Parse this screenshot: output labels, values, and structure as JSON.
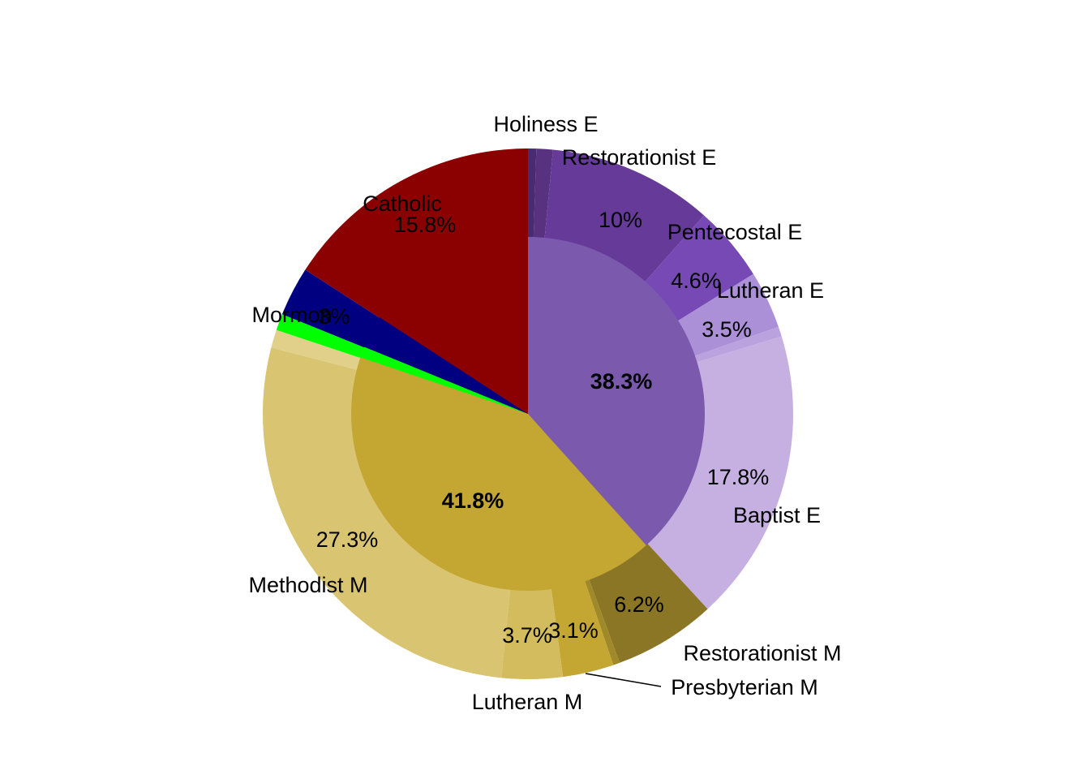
{
  "chart_data": {
    "type": "pie",
    "variant": "sunburst-two-ring",
    "title": "",
    "start": "12 o'clock",
    "direction": "clockwise",
    "inner_ring": [
      {
        "name": "",
        "value": 38.3,
        "label": "38.3%",
        "color": "#7b5aae"
      },
      {
        "name": "",
        "value": 41.8,
        "label": "41.8%",
        "color": "#c4a633"
      },
      {
        "name": "",
        "value": 1.0,
        "label": "",
        "color": "#00ff00"
      },
      {
        "name": "",
        "value": 3.0,
        "label": "",
        "color": "#000080"
      },
      {
        "name": "",
        "value": 15.8,
        "label": "",
        "color": "#8b0000"
      }
    ],
    "outer_ring": [
      {
        "name": "Holiness E",
        "value": 0.5,
        "label": "",
        "color": "#4a2a70"
      },
      {
        "name": "Restorationist E",
        "value": 1.0,
        "label": "",
        "color": "#58327f"
      },
      {
        "name": "",
        "value": 10.0,
        "label": "10%",
        "color": "#653a98"
      },
      {
        "name": "Pentecostal E",
        "value": 4.6,
        "label": "4.6%",
        "color": "#7649b5"
      },
      {
        "name": "Lutheran E",
        "value": 3.5,
        "label": "3.5%",
        "color": "#ab8fd7"
      },
      {
        "name": "",
        "value": 0.6,
        "label": "",
        "color": "#b9a2dd"
      },
      {
        "name": "Baptist E",
        "value": 17.8,
        "label": "17.8%",
        "color": "#c5b0e1"
      },
      {
        "name": "Restorationist M",
        "value": 6.2,
        "label": "6.2%",
        "color": "#8b7625"
      },
      {
        "name": "",
        "value": 0.4,
        "label": "",
        "color": "#a08929"
      },
      {
        "name": "Presbyterian M",
        "value": 3.1,
        "label": "3.1%",
        "color": "#c4a633"
      },
      {
        "name": "Lutheran M",
        "value": 3.7,
        "label": "3.7%",
        "color": "#d3bc5e"
      },
      {
        "name": "Methodist M",
        "value": 27.3,
        "label": "27.3%",
        "color": "#d9c472"
      },
      {
        "name": "",
        "value": 1.1,
        "label": "",
        "color": "#e1d08a"
      },
      {
        "name": "",
        "value": 1.0,
        "label": "",
        "color": "#00ff00"
      },
      {
        "name": "Mormon",
        "value": 3.0,
        "label": "3%",
        "color": "#000080"
      },
      {
        "name": "Catholic",
        "value": 15.8,
        "label": "15.8%",
        "color": "#8b0000"
      }
    ]
  }
}
